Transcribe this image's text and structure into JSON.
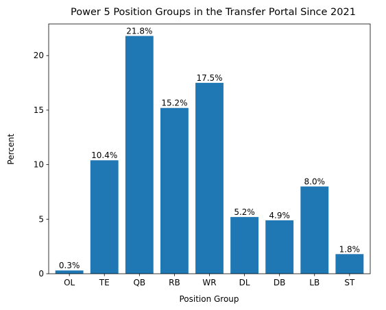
{
  "chart_data": {
    "type": "bar",
    "title": "Power 5 Position Groups in the Transfer Portal Since 2021",
    "xlabel": "Position Group",
    "ylabel": "Percent",
    "categories": [
      "OL",
      "TE",
      "QB",
      "RB",
      "WR",
      "DL",
      "DB",
      "LB",
      "ST"
    ],
    "values": [
      0.3,
      10.4,
      21.8,
      15.2,
      17.5,
      5.2,
      4.9,
      8.0,
      1.8
    ],
    "data_labels": [
      "0.3%",
      "10.4%",
      "21.8%",
      "15.2%",
      "17.5%",
      "5.2%",
      "4.9%",
      "8.0%",
      "1.8%"
    ],
    "yticks": [
      0,
      5,
      10,
      15,
      20
    ],
    "ylim": [
      0,
      22.9
    ],
    "grid": false,
    "legend": "none",
    "bar_color": "#1f77b4"
  }
}
